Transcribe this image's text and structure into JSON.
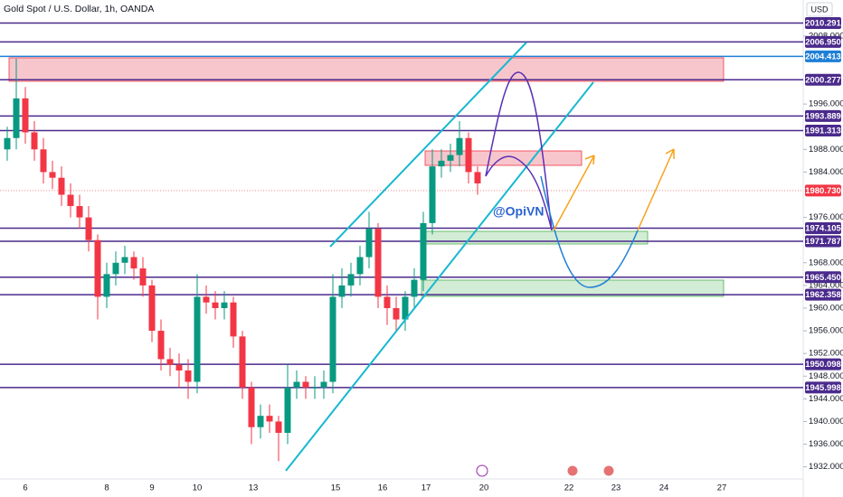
{
  "chart_data": {
    "type": "candlestick",
    "title": "Gold Spot / U.S. Dollar, 1h, OANDA",
    "currency": "USD",
    "annotation": "@OpiVN",
    "ylim": [
      1929.87,
      2014.35
    ],
    "yticks": [
      {
        "value": 2008,
        "label": "2008.000"
      },
      {
        "value": 1996,
        "label": "1996.000"
      },
      {
        "value": 1988,
        "label": "1988.000"
      },
      {
        "value": 1984,
        "label": "1984.000"
      },
      {
        "value": 1976,
        "label": "1976.000"
      },
      {
        "value": 1968,
        "label": "1968.000"
      },
      {
        "value": 1964,
        "label": "1964.000"
      },
      {
        "value": 1960,
        "label": "1960.000"
      },
      {
        "value": 1956,
        "label": "1956.000"
      },
      {
        "value": 1952,
        "label": "1952.000"
      },
      {
        "value": 1948,
        "label": "1948.000"
      },
      {
        "value": 1944,
        "label": "1944.000"
      },
      {
        "value": 1940,
        "label": "1940.000"
      },
      {
        "value": 1936,
        "label": "1936.000"
      },
      {
        "value": 1932,
        "label": "1932.000"
      }
    ],
    "x_tick_labels": [
      "6",
      "8",
      "9",
      "10",
      "13",
      "15",
      "16",
      "17",
      "20",
      "22",
      "23",
      "24",
      "27"
    ],
    "up_color": "#089981",
    "down_color": "#f23645",
    "open": [
      1988,
      1990,
      1997,
      1991,
      1988,
      1984,
      1983,
      1980,
      1978,
      1976,
      1972,
      1962,
      1966,
      1968,
      1969,
      1967,
      1964,
      1956,
      1951,
      1950,
      1949,
      1947,
      1962,
      1961,
      1960,
      1961,
      1955,
      1946,
      1939,
      1941,
      1940,
      1938,
      1946,
      1947,
      1946,
      1946,
      1947,
      1962,
      1964,
      1966,
      1969,
      1974,
      1962,
      1960,
      1958,
      1962,
      1965,
      1975,
      1985,
      1986,
      1987,
      1990,
      1984
    ],
    "high": [
      1992,
      2004,
      1999,
      1993,
      1990,
      1986,
      1985,
      1982,
      1980,
      1978,
      1973,
      1968,
      1970,
      1971,
      1970,
      1969,
      1965,
      1958,
      1953,
      1952,
      1951,
      1966,
      1964,
      1963,
      1963,
      1962,
      1956,
      1947,
      1943,
      1943,
      1941,
      1950,
      1949,
      1948,
      1948,
      1949,
      1966,
      1967,
      1968,
      1971,
      1977,
      1975,
      1964,
      1962,
      1963,
      1967,
      1977,
      1988,
      1988,
      1989,
      1993,
      1991,
      1985
    ],
    "low": [
      1986,
      1988,
      1989,
      1986,
      1982,
      1981,
      1978,
      1976,
      1974,
      1970,
      1958,
      1960,
      1964,
      1966,
      1965,
      1962,
      1954,
      1949,
      1948,
      1946,
      1944,
      1945,
      1959,
      1958,
      1958,
      1953,
      1944,
      1936,
      1937,
      1938,
      1933,
      1936,
      1944,
      1944,
      1944,
      1944,
      1945,
      1960,
      1962,
      1964,
      1967,
      1960,
      1957,
      1956,
      1956,
      1960,
      1963,
      1973,
      1983,
      1984,
      1985,
      1982,
      1980
    ],
    "close": [
      1990,
      1997,
      1991,
      1988,
      1984,
      1983,
      1980,
      1978,
      1976,
      1972,
      1962,
      1966,
      1968,
      1969,
      1967,
      1964,
      1956,
      1951,
      1950,
      1949,
      1947,
      1962,
      1961,
      1960,
      1961,
      1955,
      1946,
      1939,
      1941,
      1940,
      1938,
      1946,
      1947,
      1946,
      1946,
      1947,
      1962,
      1964,
      1966,
      1969,
      1974,
      1962,
      1960,
      1958,
      1962,
      1965,
      1975,
      1985,
      1986,
      1987,
      1990,
      1984,
      1982
    ],
    "levels": [
      {
        "value": 2010.291,
        "label": "2010.291",
        "color": "#4a2a8c"
      },
      {
        "value": 2006.95,
        "label": "2006.950",
        "color": "#4a2a8c"
      },
      {
        "value": 2004.413,
        "label": "2004.413",
        "color": "#1e7fd6"
      },
      {
        "value": 2000.277,
        "label": "2000.277",
        "color": "#4a2a8c"
      },
      {
        "value": 1993.889,
        "label": "1993.889",
        "color": "#4a2a8c"
      },
      {
        "value": 1991.313,
        "label": "1991.313",
        "color": "#4a2a8c"
      },
      {
        "value": 1980.73,
        "label": "1980.730",
        "color": "#f23645"
      },
      {
        "value": 1974.105,
        "label": "1974.105",
        "color": "#4a2a8c"
      },
      {
        "value": 1971.787,
        "label": "1971.787",
        "color": "#4a2a8c"
      },
      {
        "value": 1965.45,
        "label": "1965.450",
        "color": "#4a2a8c"
      },
      {
        "value": 1962.358,
        "label": "1962.358",
        "color": "#4a2a8c"
      },
      {
        "value": 1950.098,
        "label": "1950.098",
        "color": "#4a2a8c"
      },
      {
        "value": 1945.998,
        "label": "1945.998",
        "color": "#4a2a8c"
      }
    ]
  }
}
